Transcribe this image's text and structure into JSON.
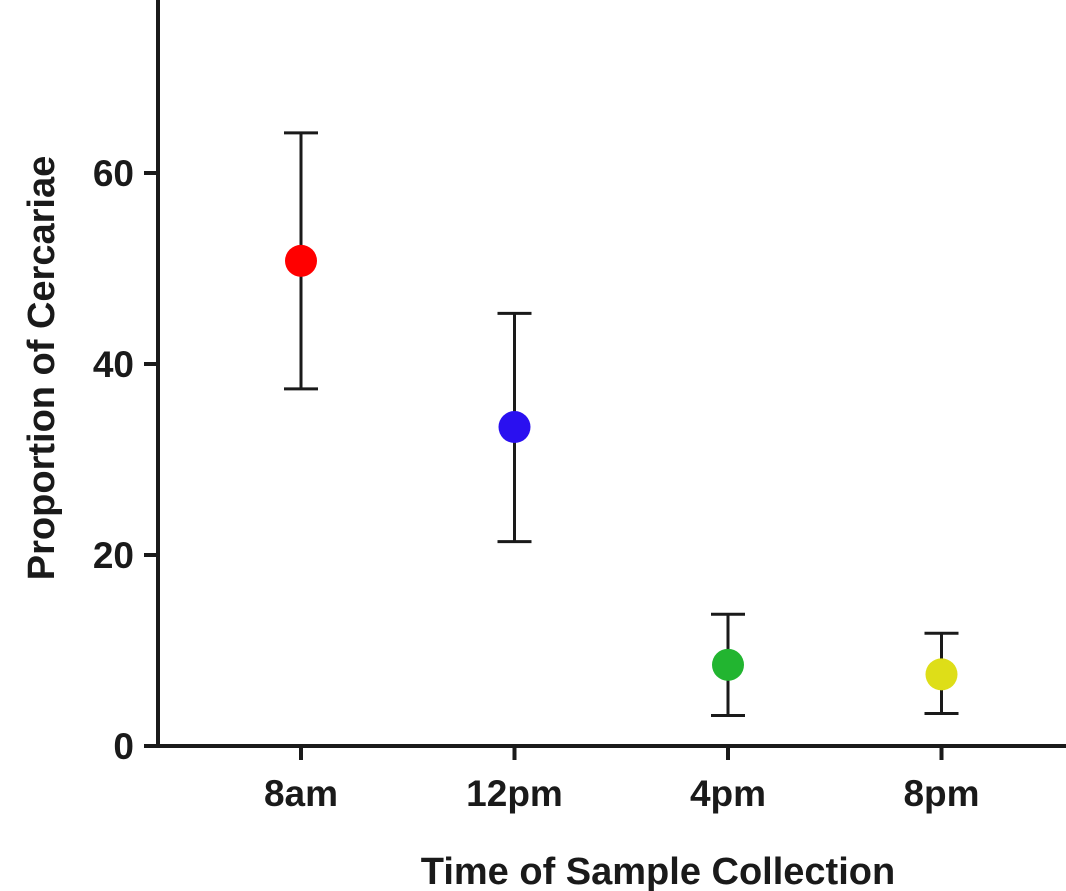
{
  "chart_data": {
    "type": "scatter",
    "title": "",
    "xlabel": "Time of Sample Collection",
    "ylabel": "Proportion of Cercariae",
    "categories": [
      "8am",
      "12pm",
      "4pm",
      "8pm"
    ],
    "points": [
      {
        "category": "8am",
        "value": 50.8,
        "error_low": 37.4,
        "error_high": 64.2,
        "color": "#ff0000"
      },
      {
        "category": "12pm",
        "value": 33.4,
        "error_low": 21.4,
        "error_high": 45.3,
        "color": "#2a10f0"
      },
      {
        "category": "4pm",
        "value": 8.5,
        "error_low": 3.2,
        "error_high": 13.8,
        "color": "#22b530"
      },
      {
        "category": "8pm",
        "value": 7.5,
        "error_low": 3.4,
        "error_high": 11.8,
        "color": "#dede18"
      }
    ],
    "ylim": [
      0,
      80
    ],
    "yticks": [
      0,
      20,
      40,
      60
    ],
    "grid": false,
    "legend": "none"
  }
}
